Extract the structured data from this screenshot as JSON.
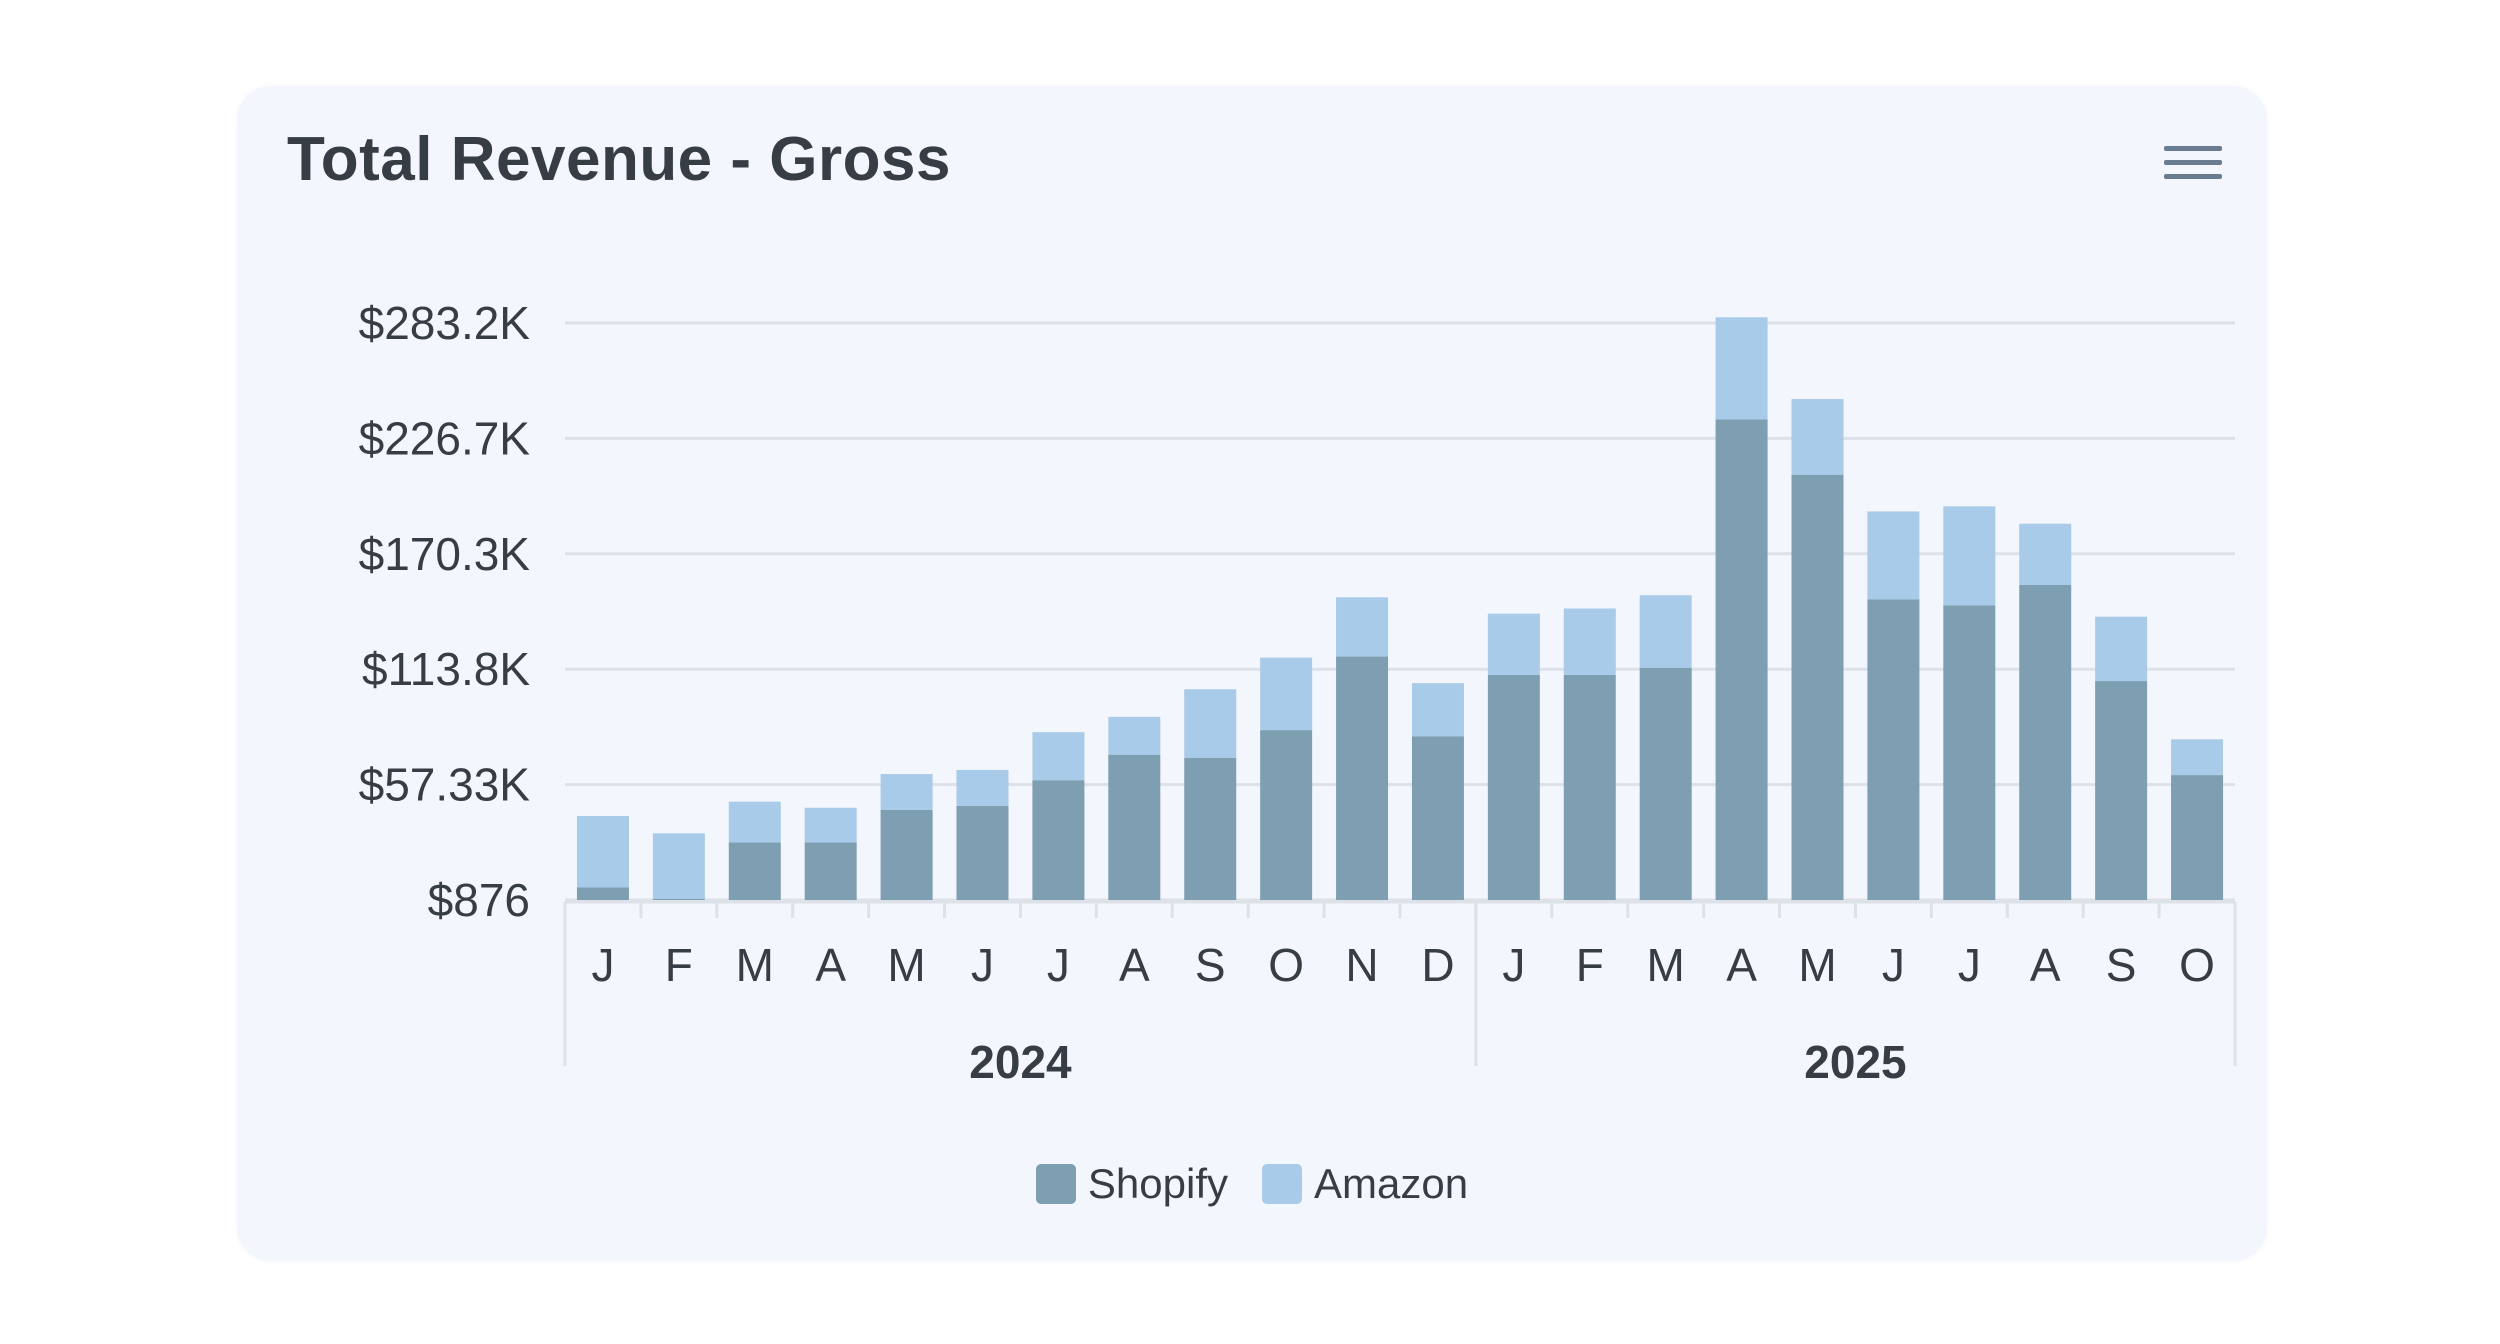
{
  "title": "Total Revenue - Gross",
  "menu_icon": "hamburger-menu-icon",
  "legend": [
    {
      "label": "Shopify",
      "color": "#7d9fb1"
    },
    {
      "label": "Amazon",
      "color": "#a9cbea"
    }
  ],
  "chart_data": {
    "type": "bar",
    "stacked": true,
    "title": "Total Revenue - Gross",
    "categories": [
      "J",
      "F",
      "M",
      "A",
      "M",
      "J",
      "J",
      "A",
      "S",
      "O",
      "N",
      "D",
      "J",
      "F",
      "M",
      "A",
      "M",
      "J",
      "J",
      "A",
      "S",
      "O"
    ],
    "groups": [
      {
        "label": "2024",
        "start": 0,
        "count": 12
      },
      {
        "label": "2025",
        "start": 12,
        "count": 10
      }
    ],
    "series": [
      {
        "name": "Shopify",
        "color": "#7d9fb1",
        "values": [
          7000,
          1500,
          29000,
          29000,
          45000,
          47000,
          59500,
          72000,
          70500,
          84000,
          120000,
          81000,
          111000,
          111000,
          114500,
          236000,
          209000,
          148000,
          145000,
          155000,
          108000,
          62000
        ]
      },
      {
        "name": "Amazon",
        "color": "#a9cbea",
        "values": [
          35000,
          32000,
          20000,
          17000,
          17500,
          17500,
          23500,
          18500,
          33500,
          35500,
          29000,
          26000,
          30000,
          32500,
          35500,
          50000,
          37000,
          43000,
          48500,
          30000,
          31500,
          17500
        ]
      }
    ],
    "yticks": [
      "$876",
      "$57.33K",
      "$113.8K",
      "$170.3K",
      "$226.7K",
      "$283.2K"
    ],
    "ylim": [
      876,
      283200
    ],
    "grid": true,
    "legend_position": "bottom-center"
  }
}
